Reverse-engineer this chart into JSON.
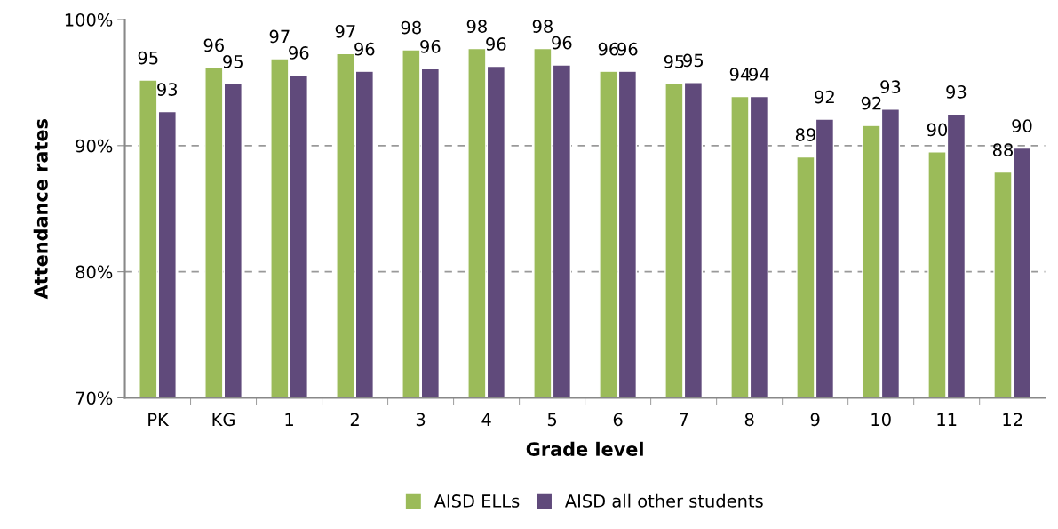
{
  "chart_data": {
    "type": "bar",
    "xlabel": "Grade level",
    "ylabel": "Attendance rates",
    "categories": [
      "PK",
      "KG",
      "1",
      "2",
      "3",
      "4",
      "5",
      "6",
      "7",
      "8",
      "9",
      "10",
      "11",
      "12"
    ],
    "series": [
      {
        "name": "AISD ELLs",
        "color": "#9bbb59",
        "values": [
          95.2,
          96.2,
          96.9,
          97.3,
          97.6,
          97.7,
          97.7,
          95.9,
          94.9,
          93.9,
          89.1,
          91.6,
          89.5,
          87.9
        ],
        "value_labels": [
          "95",
          "96",
          "97",
          "97",
          "98",
          "98",
          "98",
          "96",
          "95",
          "94",
          "89",
          "92",
          "90",
          "88"
        ]
      },
      {
        "name": "AISD all other students",
        "color": "#604a7b",
        "values": [
          92.7,
          94.9,
          95.6,
          95.9,
          96.1,
          96.3,
          96.4,
          95.9,
          95.0,
          93.9,
          92.1,
          92.9,
          92.5,
          89.8
        ],
        "value_labels": [
          "93",
          "95",
          "96",
          "96",
          "96",
          "96",
          "96",
          "96",
          "95",
          "94",
          "92",
          "93",
          "93",
          "90"
        ]
      }
    ],
    "ylim": [
      70,
      100
    ],
    "yticks": [
      {
        "value": 70,
        "label": "70%"
      },
      {
        "value": 80,
        "label": "80%"
      },
      {
        "value": 90,
        "label": "90%"
      },
      {
        "value": 100,
        "label": "100%"
      }
    ],
    "grid": "y",
    "legend": "bottom"
  }
}
